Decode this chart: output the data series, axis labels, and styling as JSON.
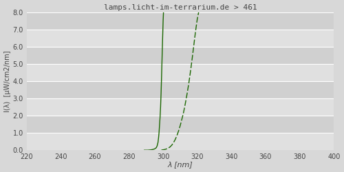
{
  "title": "lamps.licht-im-terrarium.de > 461",
  "xlabel": "λ [nm]",
  "ylabel_line1": "I(λ)  [uW/cm2/nm]",
  "xlim": [
    220,
    400
  ],
  "ylim": [
    0.0,
    8.0
  ],
  "xticks": [
    220,
    240,
    260,
    280,
    300,
    320,
    340,
    360,
    380,
    400
  ],
  "yticks": [
    0.0,
    1.0,
    2.0,
    3.0,
    4.0,
    5.0,
    6.0,
    7.0,
    8.0
  ],
  "bg_color": "#d8d8d8",
  "axes_bg_color": "#d8d8d8",
  "band_colors": [
    "#e0e0e0",
    "#d0d0d0"
  ],
  "line_color": "#1a6600",
  "grid_color": "#ffffff",
  "curve1_x": [
    289.0,
    290.0,
    291.0,
    292.0,
    293.0,
    294.0,
    295.0,
    296.0,
    296.5,
    297.0,
    297.3,
    297.6,
    297.9,
    298.2,
    298.5,
    298.8,
    299.1,
    299.4,
    299.7,
    300.0,
    300.3,
    300.6,
    301.0,
    301.5,
    302.0
  ],
  "curve1_y": [
    0.0,
    0.0,
    0.0,
    0.01,
    0.02,
    0.04,
    0.07,
    0.14,
    0.25,
    0.45,
    0.7,
    1.0,
    1.45,
    1.9,
    2.5,
    3.3,
    4.3,
    5.4,
    6.5,
    7.5,
    8.2,
    8.5,
    8.7,
    8.8,
    8.85
  ],
  "curve2_x": [
    299.0,
    300.0,
    301.0,
    302.0,
    303.0,
    304.0,
    305.0,
    306.0,
    307.0,
    308.0,
    309.0,
    310.0,
    311.0,
    312.0,
    313.0,
    314.0,
    315.0,
    316.0,
    317.0,
    318.0,
    319.0,
    320.0,
    321.0,
    322.0,
    323.0,
    324.0
  ],
  "curve2_y": [
    0.01,
    0.02,
    0.04,
    0.07,
    0.12,
    0.18,
    0.28,
    0.42,
    0.6,
    0.82,
    1.1,
    1.42,
    1.8,
    2.2,
    2.7,
    3.25,
    3.85,
    4.55,
    5.3,
    6.1,
    6.9,
    7.6,
    8.1,
    8.4,
    8.55,
    8.65
  ]
}
